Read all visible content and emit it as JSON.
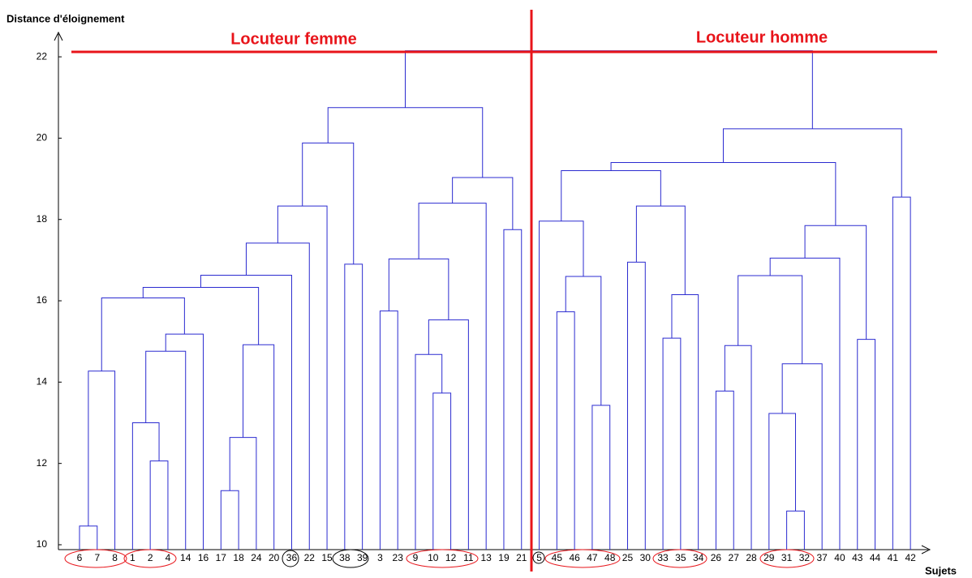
{
  "chart_data": {
    "type": "dendrogram",
    "y_label": "Distance d'éloignement",
    "x_label": "Sujets",
    "annotations": [
      "Locuteur femme",
      "Locuteur homme"
    ],
    "color": "#2b2bd0",
    "annotation_color": "#e8141a",
    "ylim": [
      9.88,
      22.6
    ],
    "yticks": [
      10,
      12,
      14,
      16,
      18,
      20,
      22
    ],
    "tree": {
      "height": 22.15,
      "children": [
        {
          "height": 20.75,
          "children": [
            {
              "height": 19.88,
              "children": [
                {
                  "height": 18.33,
                  "children": [
                    {
                      "height": 17.42,
                      "children": [
                        {
                          "height": 16.63,
                          "children": [
                            {
                              "height": 16.33,
                              "children": [
                                {
                                  "height": 16.07,
                                  "children": [
                                    {
                                      "height": 14.27,
                                      "children": [
                                        {
                                          "height": 10.46,
                                          "children": [
                                            "6",
                                            "7"
                                          ]
                                        },
                                        "8"
                                      ]
                                    },
                                    {
                                      "height": 15.18,
                                      "children": [
                                        {
                                          "height": 14.76,
                                          "children": [
                                            {
                                              "height": 13.0,
                                              "children": [
                                                "1",
                                                {
                                                  "height": 12.06,
                                                  "children": [
                                                    "2",
                                                    "4"
                                                  ]
                                                }
                                              ]
                                            },
                                            "14"
                                          ]
                                        },
                                        "16"
                                      ]
                                    }
                                  ]
                                },
                                {
                                  "height": 14.92,
                                  "children": [
                                    {
                                      "height": 12.64,
                                      "children": [
                                        {
                                          "height": 11.33,
                                          "children": [
                                            "17",
                                            "18"
                                          ]
                                        },
                                        "24"
                                      ]
                                    },
                                    "20"
                                  ]
                                }
                              ]
                            },
                            "36"
                          ]
                        },
                        "22"
                      ]
                    },
                    "15"
                  ]
                },
                {
                  "height": 16.9,
                  "children": [
                    "38",
                    "39"
                  ]
                }
              ]
            },
            {
              "height": 19.03,
              "children": [
                {
                  "height": 18.4,
                  "children": [
                    {
                      "height": 17.03,
                      "children": [
                        {
                          "height": 15.75,
                          "children": [
                            "3",
                            "23"
                          ]
                        },
                        {
                          "height": 15.53,
                          "children": [
                            {
                              "height": 14.68,
                              "children": [
                                "9",
                                {
                                  "height": 13.73,
                                  "children": [
                                    "10",
                                    "12"
                                  ]
                                }
                              ]
                            },
                            "11"
                          ]
                        }
                      ]
                    },
                    "13"
                  ]
                },
                {
                  "height": 17.75,
                  "children": [
                    "19",
                    "21"
                  ]
                }
              ]
            }
          ]
        },
        {
          "height": 20.23,
          "children": [
            {
              "height": 19.4,
              "children": [
                {
                  "height": 19.2,
                  "children": [
                    {
                      "height": 17.96,
                      "children": [
                        "5",
                        {
                          "height": 16.6,
                          "children": [
                            {
                              "height": 15.73,
                              "children": [
                                "45",
                                "46"
                              ]
                            },
                            {
                              "height": 13.43,
                              "children": [
                                "47",
                                "48"
                              ]
                            }
                          ]
                        }
                      ]
                    },
                    {
                      "height": 18.33,
                      "children": [
                        {
                          "height": 16.95,
                          "children": [
                            "25",
                            "30"
                          ]
                        },
                        {
                          "height": 16.15,
                          "children": [
                            {
                              "height": 15.08,
                              "children": [
                                "33",
                                "35"
                              ]
                            },
                            "34"
                          ]
                        }
                      ]
                    }
                  ]
                },
                {
                  "height": 17.85,
                  "children": [
                    {
                      "height": 17.05,
                      "children": [
                        {
                          "height": 16.62,
                          "children": [
                            {
                              "height": 14.9,
                              "children": [
                                {
                                  "height": 13.78,
                                  "children": [
                                    "26",
                                    "27"
                                  ]
                                },
                                "28"
                              ]
                            },
                            {
                              "height": 14.45,
                              "children": [
                                {
                                  "height": 13.23,
                                  "children": [
                                    "29",
                                    {
                                      "height": 10.83,
                                      "children": [
                                        "31",
                                        "32"
                                      ]
                                    }
                                  ]
                                },
                                "37"
                              ]
                            }
                          ]
                        },
                        "40"
                      ]
                    },
                    {
                      "height": 15.05,
                      "children": [
                        "43",
                        "44"
                      ]
                    }
                  ]
                }
              ]
            },
            {
              "height": 18.55,
              "children": [
                "41",
                "42"
              ]
            }
          ]
        }
      ]
    }
  }
}
